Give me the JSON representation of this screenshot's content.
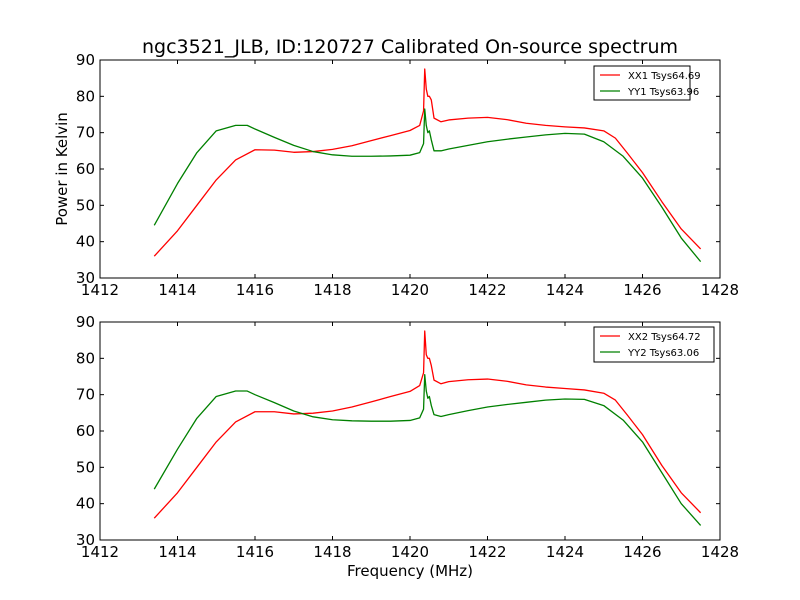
{
  "chart_data": [
    {
      "type": "line",
      "title": "ngc3521_JLB, ID:120727 Calibrated On-source spectrum",
      "xlabel": "",
      "ylabel": "Power in Kelvin",
      "xlim": [
        1412,
        1428
      ],
      "ylim": [
        30,
        90
      ],
      "xticks": [
        "1412",
        "1414",
        "1416",
        "1418",
        "1420",
        "1422",
        "1424",
        "1426",
        "1428"
      ],
      "yticks": [
        "30",
        "40",
        "50",
        "60",
        "70",
        "80",
        "90"
      ],
      "legend_position": "top-right",
      "series": [
        {
          "name": "XX1 Tsys64.69",
          "color": "#ff0000",
          "x": [
            1413.4,
            1414.0,
            1414.5,
            1415.0,
            1415.5,
            1416.0,
            1416.5,
            1417.0,
            1417.5,
            1418.0,
            1418.5,
            1419.0,
            1419.5,
            1420.0,
            1420.25,
            1420.35,
            1420.38,
            1420.42,
            1420.46,
            1420.5,
            1420.55,
            1420.62,
            1420.8,
            1421.0,
            1421.5,
            1422.0,
            1422.5,
            1423.0,
            1423.5,
            1424.0,
            1424.5,
            1425.0,
            1425.3,
            1425.6,
            1426.0,
            1426.5,
            1427.0,
            1427.5
          ],
          "values": [
            36,
            43,
            50,
            57,
            62.5,
            65.3,
            65.2,
            64.6,
            64.8,
            65.4,
            66.4,
            67.8,
            69.2,
            70.6,
            72.0,
            76,
            87.5,
            82,
            80,
            80,
            79,
            74,
            73,
            73.5,
            74.0,
            74.2,
            73.6,
            72.6,
            72.0,
            71.6,
            71.3,
            70.5,
            68.5,
            64.5,
            59.0,
            51.0,
            43.5,
            38.0
          ]
        },
        {
          "name": "YY1 Tsys63.96",
          "color": "#008000",
          "x": [
            1413.4,
            1414.0,
            1414.5,
            1415.0,
            1415.5,
            1415.8,
            1416.0,
            1416.5,
            1417.0,
            1417.5,
            1418.0,
            1418.5,
            1419.0,
            1419.5,
            1420.0,
            1420.25,
            1420.35,
            1420.38,
            1420.42,
            1420.46,
            1420.5,
            1420.55,
            1420.62,
            1420.8,
            1421.0,
            1421.5,
            1422.0,
            1422.5,
            1423.0,
            1423.5,
            1424.0,
            1424.5,
            1425.0,
            1425.5,
            1426.0,
            1426.5,
            1427.0,
            1427.5
          ],
          "values": [
            44.5,
            56,
            64.5,
            70.5,
            72.0,
            72.0,
            71.0,
            68.7,
            66.5,
            64.8,
            63.9,
            63.5,
            63.5,
            63.6,
            63.8,
            64.5,
            67,
            76.5,
            72,
            70,
            70.5,
            68,
            65,
            65.0,
            65.5,
            66.5,
            67.5,
            68.2,
            68.8,
            69.4,
            69.8,
            69.6,
            67.5,
            63.5,
            57.5,
            49.5,
            41.0,
            34.5
          ]
        }
      ]
    },
    {
      "type": "line",
      "title": "",
      "xlabel": "Frequency (MHz)",
      "ylabel": "",
      "xlim": [
        1412,
        1428
      ],
      "ylim": [
        30,
        90
      ],
      "xticks": [
        "1412",
        "1414",
        "1416",
        "1418",
        "1420",
        "1422",
        "1424",
        "1426",
        "1428"
      ],
      "yticks": [
        "30",
        "40",
        "50",
        "60",
        "70",
        "80",
        "90"
      ],
      "legend_position": "top-right",
      "series": [
        {
          "name": "XX2 Tsys64.72",
          "color": "#ff0000",
          "x": [
            1413.4,
            1414.0,
            1414.5,
            1415.0,
            1415.5,
            1416.0,
            1416.5,
            1417.0,
            1417.5,
            1418.0,
            1418.5,
            1419.0,
            1419.5,
            1420.0,
            1420.25,
            1420.35,
            1420.38,
            1420.42,
            1420.46,
            1420.5,
            1420.55,
            1420.62,
            1420.8,
            1421.0,
            1421.5,
            1422.0,
            1422.5,
            1423.0,
            1423.5,
            1424.0,
            1424.5,
            1425.0,
            1425.3,
            1425.6,
            1426.0,
            1426.5,
            1427.0,
            1427.5
          ],
          "values": [
            36,
            43,
            50,
            57,
            62.5,
            65.3,
            65.3,
            64.7,
            64.9,
            65.5,
            66.6,
            68.0,
            69.5,
            70.9,
            72.5,
            76,
            87.5,
            81,
            80,
            80,
            78,
            74,
            73,
            73.6,
            74.1,
            74.3,
            73.7,
            72.7,
            72.1,
            71.7,
            71.3,
            70.4,
            68.5,
            64.5,
            59.0,
            50.5,
            43.0,
            37.5
          ]
        },
        {
          "name": "YY2 Tsys63.06",
          "color": "#008000",
          "x": [
            1413.4,
            1414.0,
            1414.5,
            1415.0,
            1415.5,
            1415.8,
            1416.0,
            1416.5,
            1417.0,
            1417.5,
            1418.0,
            1418.5,
            1419.0,
            1419.5,
            1420.0,
            1420.25,
            1420.35,
            1420.38,
            1420.42,
            1420.46,
            1420.5,
            1420.55,
            1420.62,
            1420.8,
            1421.0,
            1421.5,
            1422.0,
            1422.5,
            1423.0,
            1423.5,
            1424.0,
            1424.5,
            1425.0,
            1425.5,
            1426.0,
            1426.5,
            1427.0,
            1427.5
          ],
          "values": [
            44,
            55,
            63.5,
            69.5,
            71.0,
            71.0,
            70.0,
            67.8,
            65.5,
            63.9,
            63.1,
            62.8,
            62.7,
            62.7,
            62.9,
            63.6,
            66,
            75.5,
            71,
            69,
            69.5,
            67,
            64.5,
            64.0,
            64.5,
            65.6,
            66.6,
            67.3,
            67.9,
            68.5,
            68.8,
            68.7,
            67.0,
            63.0,
            57.0,
            48.5,
            40.0,
            34.0
          ]
        }
      ]
    }
  ]
}
